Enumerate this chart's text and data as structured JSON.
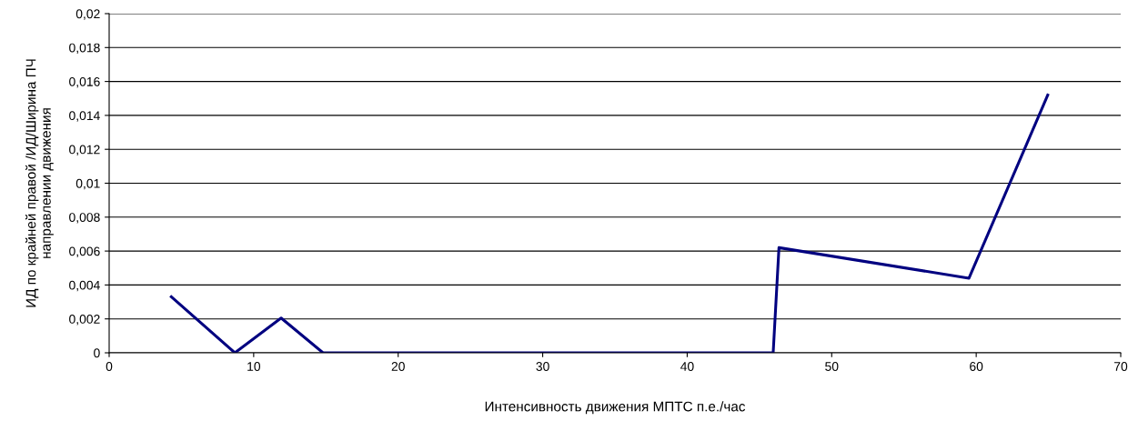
{
  "chart_data": {
    "type": "line",
    "xlabel": "Интенсивность движения МПТС п.е./час",
    "ylabel": "ИД по крайней правой /ИД/Ширина ПЧ\nнаправлении движения",
    "x": [
      4.3,
      8.7,
      11.9,
      14.8,
      45.95,
      46.35,
      59.5,
      64.95
    ],
    "series": [
      {
        "color": "#000080",
        "values": [
          0.0033,
          0,
          0.00205,
          0,
          0,
          0.0062,
          0.0044,
          0.0152
        ]
      }
    ],
    "xlim": [
      0,
      70
    ],
    "xticks": [
      0,
      10,
      20,
      30,
      40,
      50,
      60,
      70
    ],
    "ylim": [
      0,
      0.02
    ],
    "yticks": [
      {
        "value": 0,
        "label": "0"
      },
      {
        "value": 0.002,
        "label": "0,002"
      },
      {
        "value": 0.004,
        "label": "0,004"
      },
      {
        "value": 0.006,
        "label": "0,006"
      },
      {
        "value": 0.008,
        "label": "0,008"
      },
      {
        "value": 0.01,
        "label": "0,01"
      },
      {
        "value": 0.012,
        "label": "0,012"
      },
      {
        "value": 0.014,
        "label": "0,014"
      },
      {
        "value": 0.016,
        "label": "0,016"
      },
      {
        "value": 0.018,
        "label": "0,018"
      },
      {
        "value": 0.02,
        "label": "0,02"
      }
    ],
    "grid": "y",
    "marker": "none",
    "line_style": "solid"
  }
}
